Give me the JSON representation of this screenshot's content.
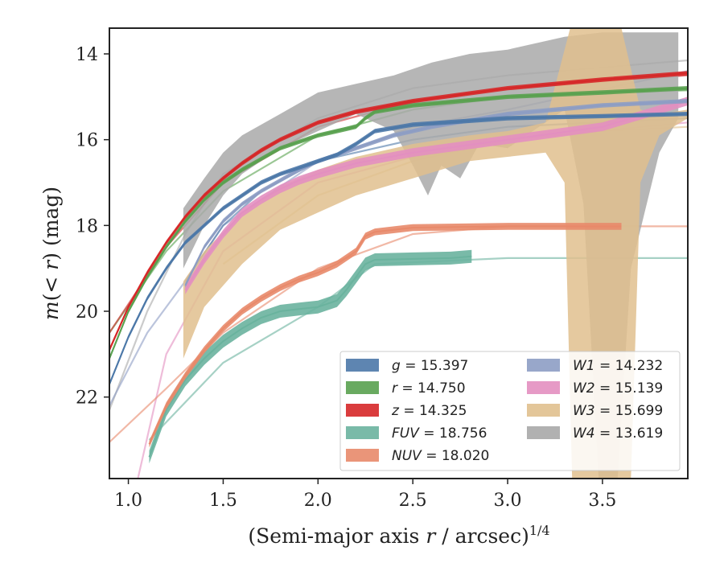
{
  "chart_data": {
    "type": "line",
    "xlabel": "(Semi-major axis r / arcsec)^1/4",
    "ylabel": "m(< r) (mag)",
    "xlim": [
      0.9,
      3.95
    ],
    "ylim": [
      23.9,
      13.4
    ],
    "y_inverted": true,
    "grid": false,
    "legend_placement": "lower-right",
    "legend_columns": 2,
    "xticks": [
      1.0,
      1.5,
      2.0,
      2.5,
      3.0,
      3.5
    ],
    "yticks": [
      14,
      16,
      18,
      20,
      22
    ],
    "xtick_labels": [
      "1.0",
      "1.5",
      "2.0",
      "2.5",
      "3.0",
      "3.5"
    ],
    "ytick_labels": [
      "14",
      "16",
      "18",
      "20",
      "22"
    ],
    "series": [
      {
        "name": "g",
        "label": "g = 15.397",
        "color": "#4c78a8",
        "points": [
          [
            0.9,
            21.7
          ],
          [
            1.0,
            20.6
          ],
          [
            1.1,
            19.7
          ],
          [
            1.2,
            19.0
          ],
          [
            1.3,
            18.4
          ],
          [
            1.4,
            18.0
          ],
          [
            1.5,
            17.6
          ],
          [
            1.6,
            17.3
          ],
          [
            1.7,
            17.0
          ],
          [
            1.8,
            16.8
          ],
          [
            1.9,
            16.65
          ],
          [
            2.0,
            16.5
          ],
          [
            2.1,
            16.35
          ],
          [
            2.2,
            16.1
          ],
          [
            2.3,
            15.8
          ],
          [
            2.5,
            15.65
          ],
          [
            3.0,
            15.5
          ],
          [
            3.5,
            15.45
          ],
          [
            3.95,
            15.4
          ]
        ],
        "band": 0.05,
        "model": [
          [
            1.3,
            19.3
          ],
          [
            1.5,
            18.0
          ],
          [
            1.7,
            17.2
          ],
          [
            2.0,
            16.5
          ],
          [
            2.5,
            16.0
          ],
          [
            3.0,
            15.7
          ],
          [
            3.95,
            15.5
          ]
        ]
      },
      {
        "name": "r",
        "label": "r = 14.750",
        "color": "#59a14f",
        "points": [
          [
            0.9,
            21.1
          ],
          [
            1.0,
            20.0
          ],
          [
            1.1,
            19.2
          ],
          [
            1.2,
            18.5
          ],
          [
            1.3,
            17.9
          ],
          [
            1.4,
            17.4
          ],
          [
            1.5,
            17.0
          ],
          [
            1.6,
            16.7
          ],
          [
            1.7,
            16.45
          ],
          [
            1.8,
            16.2
          ],
          [
            1.9,
            16.05
          ],
          [
            2.0,
            15.9
          ],
          [
            2.1,
            15.8
          ],
          [
            2.2,
            15.7
          ],
          [
            2.25,
            15.5
          ],
          [
            2.3,
            15.35
          ],
          [
            2.5,
            15.2
          ],
          [
            3.0,
            15.0
          ],
          [
            3.5,
            14.9
          ],
          [
            3.95,
            14.8
          ]
        ],
        "band": 0.05,
        "model": [
          [
            0.9,
            20.5
          ],
          [
            1.2,
            18.6
          ],
          [
            1.5,
            17.2
          ],
          [
            2.0,
            15.9
          ],
          [
            2.5,
            15.3
          ],
          [
            3.0,
            15.0
          ],
          [
            3.95,
            14.85
          ]
        ]
      },
      {
        "name": "z",
        "label": "z = 14.325",
        "color": "#d62728",
        "points": [
          [
            0.9,
            20.9
          ],
          [
            1.0,
            19.9
          ],
          [
            1.1,
            19.1
          ],
          [
            1.2,
            18.4
          ],
          [
            1.3,
            17.8
          ],
          [
            1.4,
            17.3
          ],
          [
            1.5,
            16.9
          ],
          [
            1.6,
            16.55
          ],
          [
            1.7,
            16.25
          ],
          [
            1.8,
            16.0
          ],
          [
            1.9,
            15.8
          ],
          [
            2.0,
            15.6
          ],
          [
            2.2,
            15.35
          ],
          [
            2.5,
            15.1
          ],
          [
            3.0,
            14.8
          ],
          [
            3.5,
            14.6
          ],
          [
            3.95,
            14.45
          ]
        ],
        "band": 0.05,
        "model": [
          [
            0.9,
            20.5
          ],
          [
            1.2,
            18.5
          ],
          [
            1.5,
            17.0
          ],
          [
            2.0,
            15.7
          ],
          [
            2.5,
            15.1
          ],
          [
            3.0,
            14.8
          ],
          [
            3.95,
            14.5
          ]
        ]
      },
      {
        "name": "FUV",
        "label": "FUV = 18.756",
        "color": "#6ab39e",
        "points": [
          [
            1.11,
            23.4
          ],
          [
            1.2,
            22.3
          ],
          [
            1.3,
            21.6
          ],
          [
            1.4,
            21.1
          ],
          [
            1.5,
            20.7
          ],
          [
            1.6,
            20.4
          ],
          [
            1.7,
            20.15
          ],
          [
            1.8,
            20.0
          ],
          [
            1.9,
            19.95
          ],
          [
            2.0,
            19.9
          ],
          [
            2.1,
            19.75
          ],
          [
            2.15,
            19.5
          ],
          [
            2.2,
            19.2
          ],
          [
            2.25,
            18.9
          ],
          [
            2.3,
            18.8
          ],
          [
            2.5,
            18.78
          ],
          [
            2.7,
            18.76
          ],
          [
            2.81,
            18.72
          ]
        ],
        "band": 0.15,
        "model": [
          [
            1.11,
            23.0
          ],
          [
            1.5,
            21.2
          ],
          [
            2.0,
            19.9
          ],
          [
            2.3,
            18.9
          ],
          [
            3.0,
            18.76
          ],
          [
            3.95,
            18.76
          ]
        ]
      },
      {
        "name": "NUV",
        "label": "NUV = 18.020",
        "color": "#e8896a",
        "points": [
          [
            1.11,
            23.1
          ],
          [
            1.2,
            22.2
          ],
          [
            1.3,
            21.5
          ],
          [
            1.4,
            20.9
          ],
          [
            1.5,
            20.4
          ],
          [
            1.6,
            20.0
          ],
          [
            1.7,
            19.7
          ],
          [
            1.8,
            19.45
          ],
          [
            1.9,
            19.25
          ],
          [
            2.0,
            19.1
          ],
          [
            2.1,
            18.9
          ],
          [
            2.2,
            18.6
          ],
          [
            2.25,
            18.25
          ],
          [
            2.3,
            18.15
          ],
          [
            2.5,
            18.05
          ],
          [
            3.0,
            18.02
          ],
          [
            3.5,
            18.02
          ],
          [
            3.6,
            18.02
          ]
        ],
        "band": 0.08,
        "model": [
          [
            0.9,
            23.05
          ],
          [
            1.2,
            21.8
          ],
          [
            1.5,
            20.5
          ],
          [
            2.0,
            19.0
          ],
          [
            2.5,
            18.2
          ],
          [
            3.0,
            18.02
          ],
          [
            3.95,
            18.02
          ]
        ]
      },
      {
        "name": "W1",
        "label": "W1 = 14.232",
        "color": "#8d9dc4",
        "points": [
          [
            1.3,
            19.4
          ],
          [
            1.4,
            18.5
          ],
          [
            1.5,
            17.9
          ],
          [
            1.6,
            17.5
          ],
          [
            1.7,
            17.2
          ],
          [
            1.8,
            16.95
          ],
          [
            1.9,
            16.7
          ],
          [
            2.0,
            16.5
          ],
          [
            2.2,
            16.2
          ],
          [
            2.4,
            15.9
          ],
          [
            2.6,
            15.7
          ],
          [
            2.8,
            15.55
          ],
          [
            3.0,
            15.4
          ],
          [
            3.5,
            15.2
          ],
          [
            3.95,
            15.1
          ]
        ],
        "band": 0.05,
        "model": [
          [
            0.9,
            22.2
          ],
          [
            1.1,
            20.5
          ],
          [
            1.3,
            19.3
          ],
          [
            1.5,
            18.0
          ],
          [
            2.0,
            16.5
          ],
          [
            2.5,
            15.7
          ],
          [
            3.0,
            15.3
          ],
          [
            3.95,
            14.4
          ]
        ]
      },
      {
        "name": "W2",
        "label": "W2 = 15.139",
        "color": "#e38fc0",
        "points": [
          [
            1.3,
            19.5
          ],
          [
            1.4,
            18.8
          ],
          [
            1.5,
            18.2
          ],
          [
            1.6,
            17.7
          ],
          [
            1.7,
            17.4
          ],
          [
            1.8,
            17.15
          ],
          [
            1.9,
            16.95
          ],
          [
            2.0,
            16.8
          ],
          [
            2.2,
            16.55
          ],
          [
            2.5,
            16.3
          ],
          [
            3.0,
            16.0
          ],
          [
            3.5,
            15.7
          ],
          [
            3.95,
            15.1
          ]
        ],
        "band": 0.1,
        "model": [
          [
            1.05,
            23.9
          ],
          [
            1.2,
            21.0
          ],
          [
            1.5,
            18.6
          ],
          [
            2.0,
            17.0
          ],
          [
            2.5,
            16.4
          ],
          [
            3.0,
            16.0
          ],
          [
            3.95,
            15.6
          ]
        ]
      },
      {
        "name": "W3",
        "label": "W3 = 15.699",
        "color": "#e0c08e",
        "band_lower": [
          [
            1.29,
            21.1
          ],
          [
            1.4,
            19.9
          ],
          [
            1.6,
            18.9
          ],
          [
            1.8,
            18.1
          ],
          [
            2.0,
            17.7
          ],
          [
            2.2,
            17.3
          ],
          [
            2.5,
            16.9
          ],
          [
            2.8,
            16.5
          ],
          [
            3.0,
            16.4
          ],
          [
            3.2,
            16.3
          ],
          [
            3.3,
            17.0
          ],
          [
            3.34,
            23.9
          ],
          [
            3.48,
            23.9
          ],
          [
            3.55,
            23.9
          ],
          [
            3.65,
            23.9
          ],
          [
            3.7,
            17.0
          ],
          [
            3.8,
            15.9
          ],
          [
            3.95,
            15.5
          ]
        ],
        "band_upper": [
          [
            1.29,
            19.3
          ],
          [
            1.4,
            18.6
          ],
          [
            1.6,
            17.7
          ],
          [
            1.8,
            17.1
          ],
          [
            2.0,
            16.7
          ],
          [
            2.2,
            16.4
          ],
          [
            2.5,
            16.1
          ],
          [
            2.8,
            15.9
          ],
          [
            3.0,
            15.8
          ],
          [
            3.2,
            15.6
          ],
          [
            3.33,
            13.4
          ],
          [
            3.4,
            13.4
          ],
          [
            3.6,
            13.4
          ],
          [
            3.7,
            15.3
          ],
          [
            3.8,
            15.4
          ],
          [
            3.95,
            15.3
          ]
        ],
        "model": [
          [
            1.5,
            18.9
          ],
          [
            2.0,
            17.3
          ],
          [
            2.5,
            16.5
          ],
          [
            3.0,
            16.0
          ],
          [
            3.5,
            15.8
          ],
          [
            3.95,
            15.7
          ]
        ]
      },
      {
        "name": "W4",
        "label": "W4 = 13.619",
        "color": "#a9a9a9",
        "band_lower": [
          [
            1.29,
            19.0
          ],
          [
            1.4,
            18.0
          ],
          [
            1.5,
            17.3
          ],
          [
            1.6,
            16.8
          ],
          [
            1.8,
            16.2
          ],
          [
            2.0,
            15.8
          ],
          [
            2.2,
            15.4
          ],
          [
            2.4,
            15.8
          ],
          [
            2.5,
            16.6
          ],
          [
            2.58,
            17.3
          ],
          [
            2.65,
            16.6
          ],
          [
            2.75,
            16.9
          ],
          [
            2.85,
            16.1
          ],
          [
            3.0,
            16.2
          ],
          [
            3.2,
            15.6
          ],
          [
            3.3,
            15.3
          ],
          [
            3.4,
            17.5
          ],
          [
            3.48,
            23.9
          ],
          [
            3.58,
            23.9
          ],
          [
            3.65,
            19.0
          ],
          [
            3.8,
            16.3
          ],
          [
            3.9,
            15.5
          ]
        ],
        "band_upper": [
          [
            1.29,
            17.6
          ],
          [
            1.4,
            16.9
          ],
          [
            1.5,
            16.3
          ],
          [
            1.6,
            15.9
          ],
          [
            1.8,
            15.4
          ],
          [
            2.0,
            14.9
          ],
          [
            2.2,
            14.7
          ],
          [
            2.4,
            14.5
          ],
          [
            2.6,
            14.2
          ],
          [
            2.8,
            14.0
          ],
          [
            3.0,
            13.9
          ],
          [
            3.3,
            13.6
          ],
          [
            3.5,
            13.5
          ],
          [
            3.9,
            13.5
          ]
        ],
        "model": [
          [
            0.9,
            22.3
          ],
          [
            1.1,
            20.0
          ],
          [
            1.3,
            18.2
          ],
          [
            1.5,
            16.8
          ],
          [
            2.0,
            15.5
          ],
          [
            2.5,
            14.8
          ],
          [
            3.0,
            14.5
          ],
          [
            3.95,
            14.15
          ]
        ]
      }
    ]
  }
}
